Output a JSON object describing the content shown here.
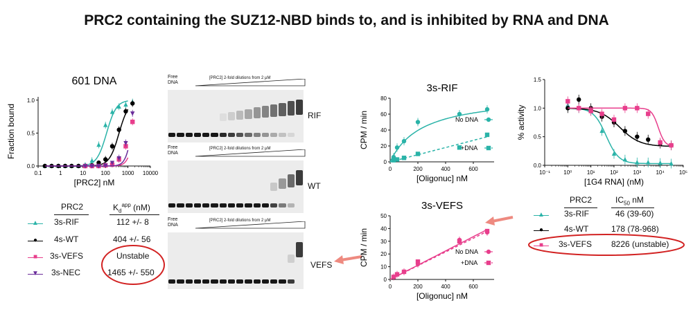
{
  "title": "PRC2 containing the SUZ12-NBD binds to, and is inhibited by RNA and DNA",
  "colors": {
    "rif": "#2ab3a8",
    "wt": "#000000",
    "vefs": "#e83e8c",
    "nec": "#6a2c9a",
    "circle": "#d22222",
    "arrow": "#ee8a80"
  },
  "binding_table": {
    "header": [
      "PRC2",
      "K",
      "d",
      "app",
      " (nM)"
    ],
    "rows": [
      {
        "name": "3s-RIF",
        "value": "112 +/- 8",
        "marker": "▲"
      },
      {
        "name": "4s-WT",
        "value": "404 +/- 56",
        "marker": "●"
      },
      {
        "name": "3s-VEFS",
        "value": "Unstable",
        "marker": "■"
      },
      {
        "name": "3s-NEC",
        "value": "1465 +/- 550",
        "marker": "▼"
      }
    ]
  },
  "ic50_table": {
    "header": [
      "PRC2",
      "IC",
      "50",
      " nM"
    ],
    "rows": [
      {
        "name": "3s-RIF",
        "value": "46 (39-60)",
        "marker": "▲"
      },
      {
        "name": "4s-WT",
        "value": "178 (78-968)",
        "marker": "●"
      },
      {
        "name": "3s-VEFS",
        "value": "8226 (unstable)",
        "marker": "■"
      }
    ]
  },
  "gels": {
    "free_label": [
      "Free",
      "DNA"
    ],
    "dilution_label": "[PRC2] 2-fold dilutions from 2 μM",
    "panels": [
      {
        "label": "RIF",
        "shift_frac": 0.65
      },
      {
        "label": "WT",
        "shift_frac": 0.25
      },
      {
        "label": "VEFS",
        "shift_frac": 0.08
      }
    ]
  },
  "chart_data": [
    {
      "type": "scatter",
      "title": "601 DNA",
      "xlabel": "[PRC2] nM",
      "ylabel": "Fraction bound",
      "xscale": "log",
      "xlim": [
        0.1,
        10000
      ],
      "ylim": [
        0,
        1.05
      ],
      "x_ticks": [
        0.1,
        1,
        10,
        100,
        1000,
        10000
      ],
      "x_tick_labels": [
        "0.1",
        "1",
        "10",
        "100",
        "1000",
        "10000"
      ],
      "y_ticks": [
        0,
        0.5,
        1.0
      ],
      "y_tick_labels": [
        "0.0",
        "0.5",
        "1.0"
      ],
      "series": [
        {
          "name": "3s-RIF",
          "key": "rif",
          "marker": "triangle",
          "kd": 112,
          "hill": 2.0,
          "x": [
            0.2,
            0.4,
            0.8,
            1.6,
            3.1,
            6.3,
            12.5,
            25,
            50,
            100,
            200,
            400,
            800,
            1600
          ],
          "y": [
            0,
            0,
            0,
            0,
            0,
            0,
            0.02,
            0.08,
            0.32,
            0.62,
            0.82,
            0.9,
            0.93,
            0.97
          ]
        },
        {
          "name": "4s-WT",
          "key": "wt",
          "marker": "circle",
          "kd": 404,
          "hill": 2.0,
          "x": [
            0.2,
            0.4,
            0.8,
            1.6,
            3.1,
            6.3,
            12.5,
            25,
            50,
            100,
            200,
            400,
            800,
            1600
          ],
          "y": [
            0,
            0,
            0,
            0,
            0,
            0,
            0,
            0.01,
            0.05,
            0.1,
            0.3,
            0.55,
            0.83,
            0.95
          ]
        },
        {
          "name": "3s-VEFS",
          "key": "vefs",
          "marker": "square",
          "kd": 1900,
          "hill": 3.0,
          "x": [
            12.5,
            25,
            50,
            100,
            200,
            400,
            800,
            1600
          ],
          "y": [
            0,
            0,
            0,
            0.01,
            0.02,
            0.1,
            0.3,
            0.67
          ]
        },
        {
          "name": "3s-NEC",
          "key": "nec",
          "marker": "triangle-down",
          "kd": 1465,
          "hill": 3.0,
          "x": [
            12.5,
            25,
            50,
            100,
            200,
            400,
            800,
            1600
          ],
          "y": [
            0,
            0,
            0,
            0.01,
            0.05,
            0.12,
            0.35,
            0.8
          ]
        }
      ]
    },
    {
      "type": "scatter",
      "title": "3s-RIF",
      "xlabel": "[Oligonuc] nM",
      "ylabel": "CPM / min",
      "xlim": [
        0,
        750
      ],
      "ylim": [
        0,
        80
      ],
      "x_ticks": [
        0,
        200,
        400,
        600
      ],
      "y_ticks": [
        0,
        20,
        40,
        60,
        80
      ],
      "series": [
        {
          "name": "No DNA",
          "key": "rif",
          "fit": "hyperbolic",
          "vmax": 85,
          "km": 230,
          "x": [
            25,
            50,
            100,
            200,
            500,
            700
          ],
          "y": [
            6,
            18,
            26,
            50,
            60,
            66
          ]
        },
        {
          "name": "+DNA",
          "key": "rif",
          "fit": "linear-dashed",
          "slope": 0.045,
          "x": [
            25,
            50,
            100,
            200,
            500,
            700
          ],
          "y": [
            2,
            3,
            5,
            10,
            18,
            34
          ]
        }
      ]
    },
    {
      "type": "scatter",
      "title": "3s-VEFS",
      "xlabel": "[Oligonuc] nM",
      "ylabel": "CPM / min",
      "xlim": [
        0,
        750
      ],
      "ylim": [
        0,
        50
      ],
      "x_ticks": [
        0,
        200,
        400,
        600
      ],
      "y_ticks": [
        0,
        10,
        20,
        30,
        40,
        50
      ],
      "series": [
        {
          "name": "No DNA",
          "key": "vefs",
          "fit": "linear",
          "slope": 0.056,
          "x": [
            25,
            50,
            100,
            200,
            500,
            700
          ],
          "y": [
            2,
            4,
            6,
            12,
            31,
            37
          ]
        },
        {
          "name": "+DNA",
          "key": "vefs",
          "fit": "linear-dashed",
          "slope": 0.054,
          "x": [
            25,
            50,
            100,
            200,
            500,
            700
          ],
          "y": [
            2,
            4,
            6,
            14,
            30,
            38
          ]
        }
      ]
    },
    {
      "type": "scatter",
      "title": "",
      "xlabel": "[1G4 RNA] (nM)",
      "ylabel": "% activity",
      "xscale": "log",
      "xlim": [
        0.1,
        100000
      ],
      "ylim": [
        0,
        1.5
      ],
      "x_ticks": [
        0.1,
        1,
        10,
        100,
        1000,
        10000,
        100000
      ],
      "x_tick_labels": [
        "10⁻¹",
        "10⁰",
        "10¹",
        "10²",
        "10³",
        "10⁴",
        "10⁵"
      ],
      "y_ticks": [
        0,
        0.5,
        1.0,
        1.5
      ],
      "y_tick_labels": [
        "0.0",
        "0.5",
        "1.0",
        "1.5"
      ],
      "series": [
        {
          "name": "3s-RIF",
          "key": "rif",
          "marker": "triangle",
          "ic50": 46,
          "x": [
            1,
            3,
            10,
            30,
            100,
            300,
            1000,
            3000,
            10000,
            30000
          ],
          "y": [
            1.05,
            1.0,
            0.95,
            0.6,
            0.2,
            0.1,
            0.05,
            0.05,
            0.04,
            0.03
          ]
        },
        {
          "name": "4s-WT",
          "key": "wt",
          "marker": "circle",
          "ic50": 178,
          "x": [
            1,
            3,
            10,
            30,
            100,
            300,
            1000,
            3000,
            10000,
            30000
          ],
          "y": [
            1.0,
            1.15,
            1.0,
            0.85,
            0.75,
            0.6,
            0.5,
            0.45,
            0.38,
            0.35
          ]
        },
        {
          "name": "3s-VEFS",
          "key": "vefs",
          "marker": "square",
          "ic50": 8226,
          "x": [
            1,
            3,
            10,
            30,
            100,
            300,
            1000,
            3000,
            10000,
            30000
          ],
          "y": [
            1.12,
            1.0,
            0.95,
            0.9,
            0.8,
            1.0,
            1.0,
            0.9,
            0.4,
            0.35
          ]
        }
      ]
    }
  ]
}
